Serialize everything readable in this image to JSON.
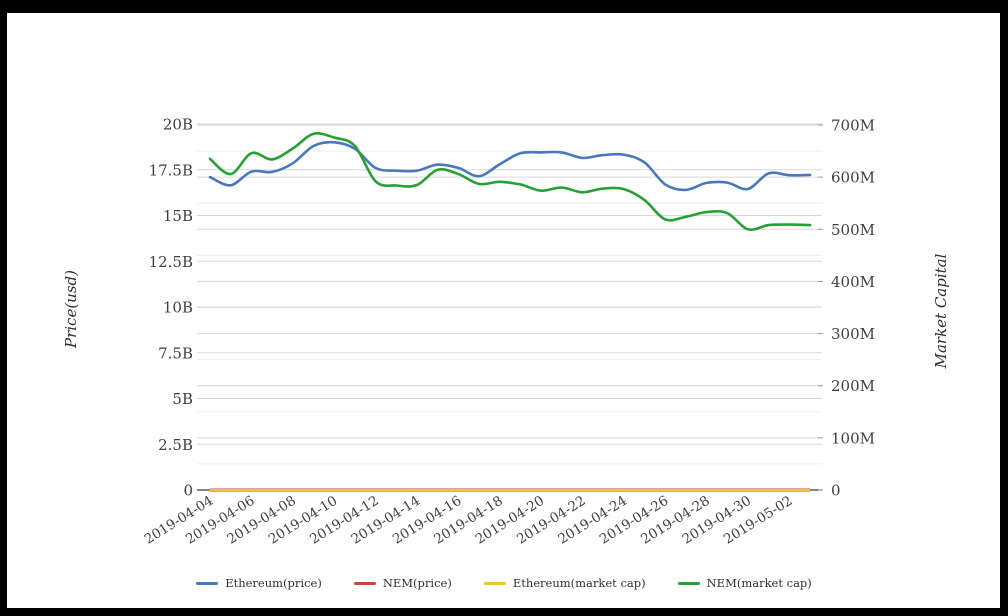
{
  "page": {
    "background": "#ffffff",
    "frame_color": "#000000"
  },
  "chart_data": {
    "type": "line",
    "x_dates": [
      "2019-04-04",
      "2019-04-05",
      "2019-04-06",
      "2019-04-07",
      "2019-04-08",
      "2019-04-09",
      "2019-04-10",
      "2019-04-11",
      "2019-04-12",
      "2019-04-13",
      "2019-04-14",
      "2019-04-15",
      "2019-04-16",
      "2019-04-17",
      "2019-04-18",
      "2019-04-19",
      "2019-04-20",
      "2019-04-21",
      "2019-04-22",
      "2019-04-23",
      "2019-04-24",
      "2019-04-25",
      "2019-04-26",
      "2019-04-27",
      "2019-04-28",
      "2019-04-29",
      "2019-04-30",
      "2019-05-01",
      "2019-05-02",
      "2019-05-03"
    ],
    "x_tick_labels": [
      "2019-04-04",
      "2019-04-06",
      "2019-04-08",
      "2019-04-10",
      "2019-04-12",
      "2019-04-14",
      "2019-04-16",
      "2019-04-18",
      "2019-04-20",
      "2019-04-22",
      "2019-04-24",
      "2019-04-26",
      "2019-04-28",
      "2019-04-30",
      "2019-05-02"
    ],
    "left_axis": {
      "title": "Price(usd)",
      "tick_labels": [
        "0",
        "2.5B",
        "5B",
        "7.5B",
        "10B",
        "12.5B",
        "15B",
        "17.5B",
        "20B"
      ],
      "range_billions": [
        0,
        20
      ]
    },
    "right_axis": {
      "title": "Market Capital",
      "tick_labels": [
        "0",
        "100M",
        "200M",
        "300M",
        "400M",
        "500M",
        "600M",
        "700M"
      ],
      "range_millions": [
        0,
        700
      ]
    },
    "series": [
      {
        "name": "Ethereum(price)",
        "color": "#4a78bb",
        "axis": "left",
        "unit": "billion_usd",
        "values": [
          17.1,
          16.65,
          17.4,
          17.38,
          17.85,
          18.8,
          19.0,
          18.65,
          17.6,
          17.45,
          17.45,
          17.78,
          17.6,
          17.15,
          17.8,
          18.4,
          18.45,
          18.45,
          18.15,
          18.3,
          18.32,
          17.9,
          16.7,
          16.4,
          16.78,
          16.8,
          16.45,
          17.3,
          17.2,
          17.22
        ]
      },
      {
        "name": "NEM(price)",
        "color": "#bf4b30",
        "axis": "left",
        "unit": "usd",
        "flat_value": 0
      },
      {
        "name": "Ethereum(market cap)",
        "color": "#f1c232",
        "axis": "left",
        "unit": "usd",
        "flat_value": 0
      },
      {
        "name": "NEM(market cap)",
        "color": "#27a036",
        "axis": "right",
        "unit": "million_usd",
        "values": [
          635,
          606,
          646,
          634,
          655,
          683,
          676,
          660,
          592,
          584,
          585,
          614,
          606,
          587,
          591,
          586,
          574,
          580,
          571,
          578,
          577,
          556,
          519,
          524,
          533,
          531,
          500,
          508,
          509,
          508
        ]
      }
    ],
    "legend": {
      "position": "bottom",
      "entries": [
        "Ethereum(price)",
        "NEM(price)",
        "Ethereum(market cap)",
        "NEM(market cap)"
      ]
    },
    "grid": {
      "major_color": "#d8d8d8",
      "minor_color": "#ededed",
      "zero_line_color": "#3b3b3b",
      "tick_text_color": "#3f3f3f"
    }
  }
}
